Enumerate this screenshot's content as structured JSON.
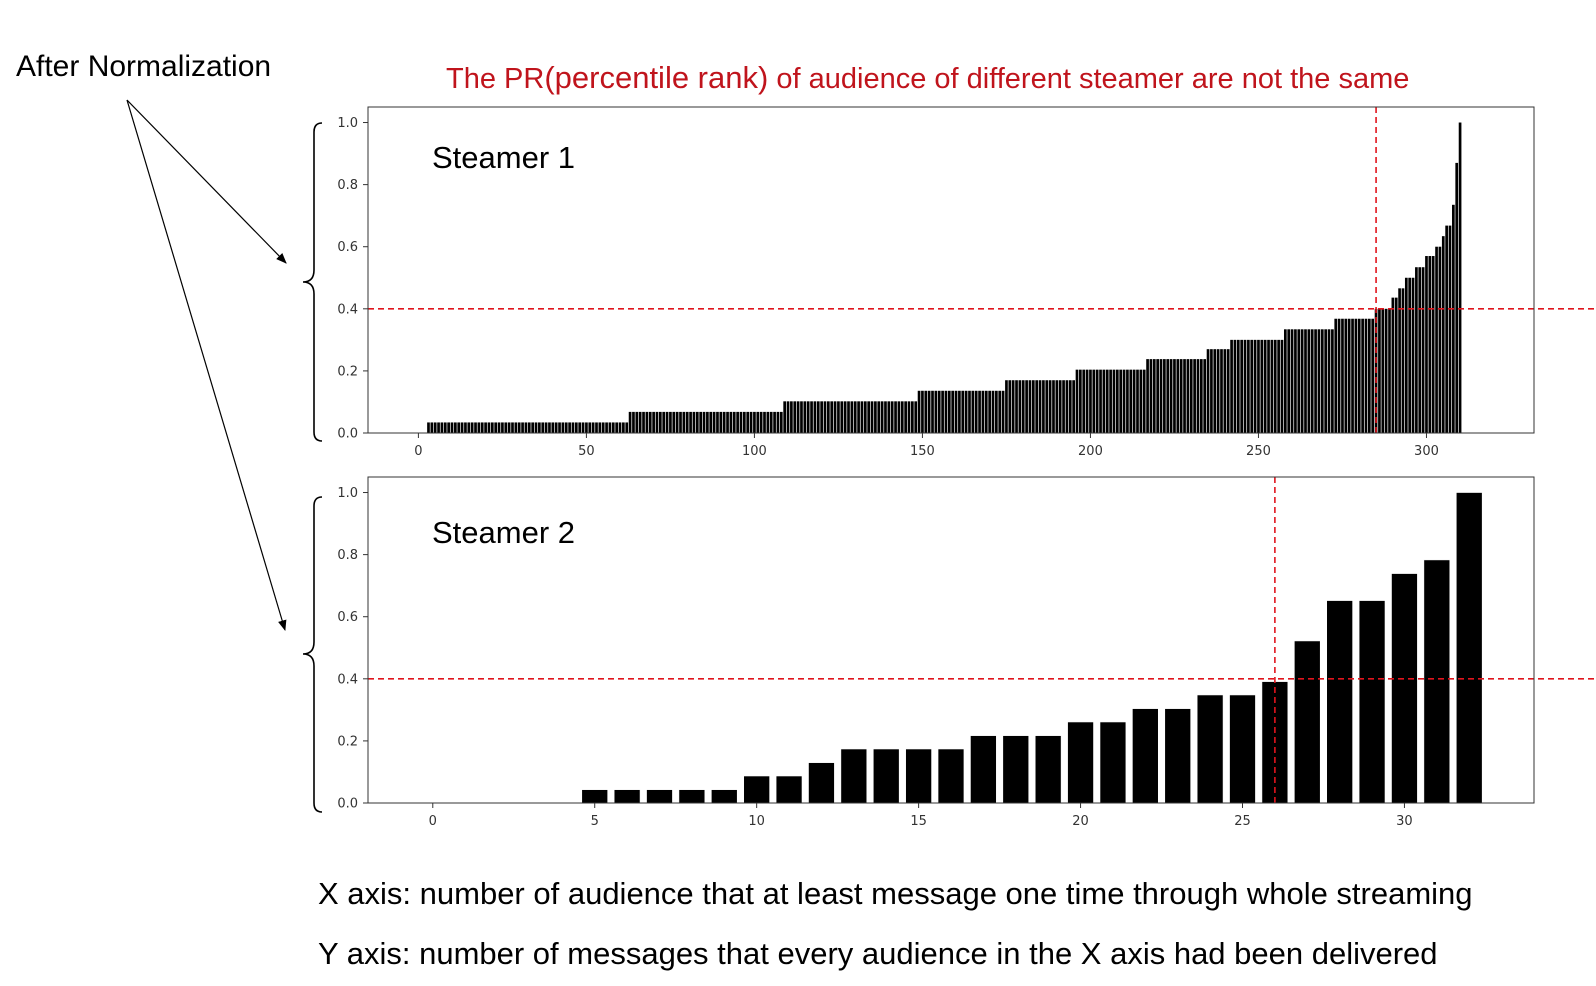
{
  "annotations": {
    "side_label": "After Normalization",
    "headline_prefix": "The PR",
    "headline_big": "(percentile rank)",
    "headline_suffix": " of audience of different steamer are not the same",
    "x_axis_note": "X axis: number of audience that at least message one time through whole streaming",
    "y_axis_note": "Y axis: number of messages that every audience in the X axis had been delivered"
  },
  "colors": {
    "bars": "#000000",
    "reference_lines": "#e0141c",
    "headline": "#c0141c"
  },
  "chart_data": [
    {
      "type": "bar",
      "title": "Steamer 1",
      "xlim": [
        -15,
        332
      ],
      "xticks": [
        0,
        50,
        100,
        150,
        200,
        250,
        300
      ],
      "ylim": [
        0,
        1.05
      ],
      "yticks": [
        0.0,
        0.2,
        0.4,
        0.6,
        0.8,
        1.0
      ],
      "reference_lines": {
        "x": 285,
        "y": 0.4
      },
      "bar_width": 0.8,
      "segments": [
        {
          "from": 0,
          "to": 2,
          "value": 0.0
        },
        {
          "from": 3,
          "to": 62,
          "value": 0.034
        },
        {
          "from": 63,
          "to": 108,
          "value": 0.068
        },
        {
          "from": 109,
          "to": 148,
          "value": 0.102
        },
        {
          "from": 149,
          "to": 174,
          "value": 0.136
        },
        {
          "from": 175,
          "to": 195,
          "value": 0.17
        },
        {
          "from": 196,
          "to": 216,
          "value": 0.204
        },
        {
          "from": 217,
          "to": 234,
          "value": 0.238
        },
        {
          "from": 235,
          "to": 241,
          "value": 0.27
        },
        {
          "from": 242,
          "to": 257,
          "value": 0.3
        },
        {
          "from": 258,
          "to": 272,
          "value": 0.334
        },
        {
          "from": 273,
          "to": 284,
          "value": 0.368
        },
        {
          "from": 285,
          "to": 289,
          "value": 0.4
        },
        {
          "from": 290,
          "to": 291,
          "value": 0.436
        },
        {
          "from": 292,
          "to": 293,
          "value": 0.466
        },
        {
          "from": 294,
          "to": 296,
          "value": 0.5
        },
        {
          "from": 297,
          "to": 299,
          "value": 0.534
        },
        {
          "from": 300,
          "to": 302,
          "value": 0.57
        },
        {
          "from": 303,
          "to": 304,
          "value": 0.6
        },
        {
          "from": 305,
          "to": 305,
          "value": 0.634
        },
        {
          "from": 306,
          "to": 307,
          "value": 0.668
        },
        {
          "from": 308,
          "to": 308,
          "value": 0.735
        },
        {
          "from": 309,
          "to": 309,
          "value": 0.87
        },
        {
          "from": 310,
          "to": 310,
          "value": 1.0
        }
      ]
    },
    {
      "type": "bar",
      "title": "Steamer 2",
      "xlim": [
        -2,
        34
      ],
      "xticks": [
        0,
        5,
        10,
        15,
        20,
        25,
        30
      ],
      "ylim": [
        0,
        1.05
      ],
      "yticks": [
        0.0,
        0.2,
        0.4,
        0.6,
        0.8,
        1.0
      ],
      "reference_lines": {
        "x": 26,
        "y": 0.4
      },
      "bar_width": 0.8,
      "x": [
        0,
        1,
        2,
        3,
        4,
        5,
        6,
        7,
        8,
        9,
        10,
        11,
        12,
        13,
        14,
        15,
        16,
        17,
        18,
        19,
        20,
        21,
        22,
        23,
        24,
        25,
        26,
        27,
        28,
        29,
        30,
        31,
        32
      ],
      "values": [
        0,
        0,
        0,
        0,
        0,
        0.043,
        0.043,
        0.043,
        0.043,
        0.043,
        0.087,
        0.087,
        0.13,
        0.174,
        0.174,
        0.174,
        0.174,
        0.217,
        0.217,
        0.217,
        0.261,
        0.261,
        0.304,
        0.304,
        0.348,
        0.348,
        0.391,
        0.522,
        0.652,
        0.652,
        0.739,
        0.783,
        1.0
      ]
    }
  ]
}
